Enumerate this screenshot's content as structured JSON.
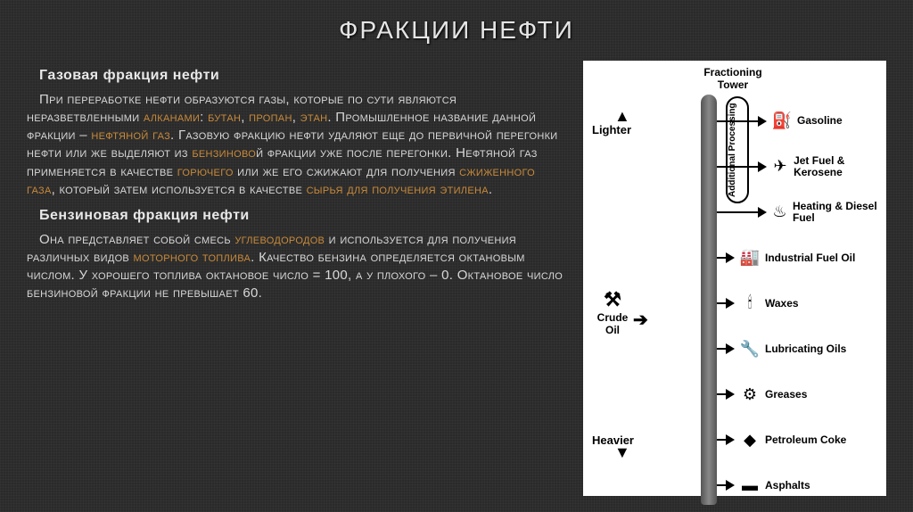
{
  "title": "ФРАКЦИИ НЕФТИ",
  "section1": {
    "heading": "Газовая фракция нефти",
    "p1a": "При переработке нефти образуются газы, которые по сути являются неразветвленными ",
    "alkanes": "алканами",
    "p1b": ": ",
    "butane": "бутан",
    "sep1": ", ",
    "propane": "пропан",
    "sep2": ", ",
    "ethane": "этан",
    "p1c": ". Промышленное название данной фракции – ",
    "petrogas": "нефтяной газ",
    "p1d": ". Газовую фракцию нефти удаляют еще до первичной перегонки нефти или же выделяют из ",
    "benzfrac": "бензиново",
    "p1e": "й фракции уже после перегонки. Нефтяной газ применяется в качестве ",
    "fuel": "горючего",
    "p1f": " или же его сжижают для получения ",
    "liqgas": "сжиженного газа",
    "p1g": ", который затем используется в качестве ",
    "raw": "сырья для получения этилена",
    "p1h": "."
  },
  "section2": {
    "heading": "Бензиновая фракция нефти",
    "p2a": "Она представляет собой смесь ",
    "hc": "углеводородов",
    "p2b": " и используется для получения различных видов ",
    "motor": "моторного топлива",
    "p2c": ". Качество бензина определяется октановым числом. У хорошего топлива октановое число = 100, а у плохого – 0. Октановое число бензиновой фракции не превышает 60."
  },
  "diagram": {
    "tower": "Fractioning Tower",
    "addproc": "Additional Processing",
    "lighter": "Lighter",
    "heavier": "Heavier",
    "crude": "Crude Oil",
    "outputs": [
      {
        "icon": "⛽",
        "label": "Gasoline"
      },
      {
        "icon": "✈",
        "label": "Jet Fuel & Kerosene"
      },
      {
        "icon": "♨",
        "label": "Heating & Diesel Fuel"
      },
      {
        "icon": "🏭",
        "label": "Industrial Fuel Oil"
      },
      {
        "icon": "🕯",
        "label": "Waxes"
      },
      {
        "icon": "🔧",
        "label": "Lubricating Oils"
      },
      {
        "icon": "⚙",
        "label": "Greases"
      },
      {
        "icon": "◆",
        "label": "Petroleum Coke"
      },
      {
        "icon": "▬",
        "label": "Asphalts"
      }
    ]
  },
  "colors": {
    "highlight": "#c98a3a",
    "text": "#d8d8d8",
    "bg": "#2a2a2a"
  }
}
